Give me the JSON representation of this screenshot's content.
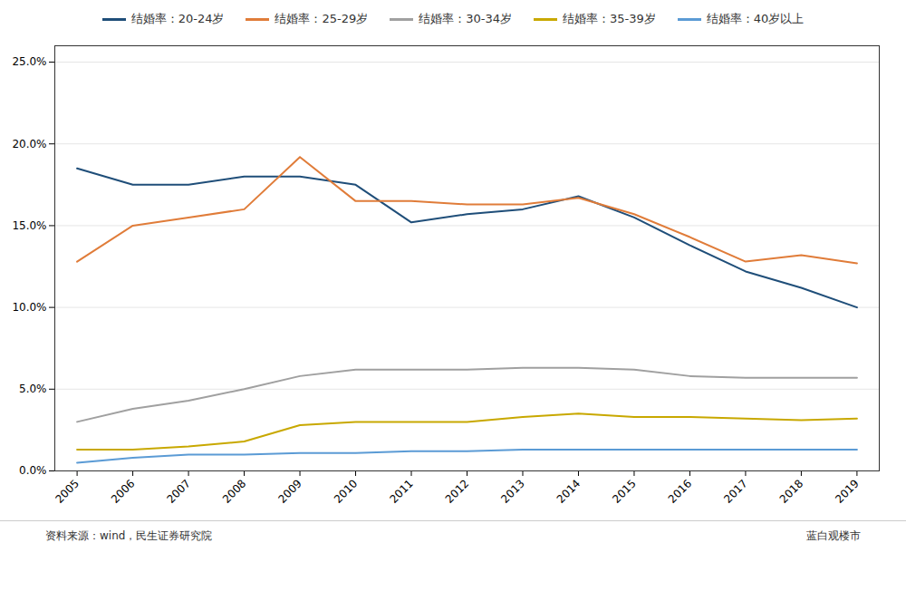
{
  "chart_data": {
    "type": "line",
    "x": [
      2005,
      2006,
      2007,
      2008,
      2009,
      2010,
      2011,
      2012,
      2013,
      2014,
      2015,
      2016,
      2017,
      2018,
      2019
    ],
    "series": [
      {
        "name": "结婚率：20-24岁",
        "color": "#1f4e79",
        "values": [
          0.185,
          0.175,
          0.175,
          0.18,
          0.18,
          0.175,
          0.152,
          0.157,
          0.16,
          0.168,
          0.155,
          0.138,
          0.122,
          0.112,
          0.1
        ]
      },
      {
        "name": "结婚率：25-29岁",
        "color": "#e07c39",
        "values": [
          0.128,
          0.15,
          0.155,
          0.16,
          0.192,
          0.165,
          0.165,
          0.163,
          0.163,
          0.167,
          0.157,
          0.143,
          0.128,
          0.132,
          0.127
        ]
      },
      {
        "name": "结婚率：30-34岁",
        "color": "#a0a0a0",
        "values": [
          0.03,
          0.038,
          0.043,
          0.05,
          0.058,
          0.062,
          0.062,
          0.062,
          0.063,
          0.063,
          0.062,
          0.058,
          0.057,
          0.057,
          0.057
        ]
      },
      {
        "name": "结婚率：35-39岁",
        "color": "#c8a800",
        "values": [
          0.013,
          0.013,
          0.015,
          0.018,
          0.028,
          0.03,
          0.03,
          0.03,
          0.033,
          0.035,
          0.033,
          0.033,
          0.032,
          0.031,
          0.032
        ]
      },
      {
        "name": "结婚率：40岁以上",
        "color": "#5b9bd5",
        "values": [
          0.005,
          0.008,
          0.01,
          0.01,
          0.011,
          0.011,
          0.012,
          0.012,
          0.013,
          0.013,
          0.013,
          0.013,
          0.013,
          0.013,
          0.013
        ]
      }
    ],
    "xlim": [
      2004.6,
      2019.4
    ],
    "xticks": [
      2005,
      2006,
      2007,
      2008,
      2009,
      2010,
      2011,
      2012,
      2013,
      2014,
      2015,
      2016,
      2017,
      2018,
      2019
    ],
    "ylim": [
      0.0,
      0.26
    ],
    "yticks": [
      {
        "value": 0.0,
        "label": "0.0%"
      },
      {
        "value": 0.05,
        "label": "5.0%"
      },
      {
        "value": 0.1,
        "label": "10.0%"
      },
      {
        "value": 0.15,
        "label": "15.0%"
      },
      {
        "value": 0.2,
        "label": "20.0%"
      },
      {
        "value": 0.25,
        "label": "25.0%"
      }
    ],
    "grid": "y",
    "legend": "top",
    "annotations": [
      "资料来源：wind，民生证券研究院",
      "蓝白观楼市"
    ]
  }
}
